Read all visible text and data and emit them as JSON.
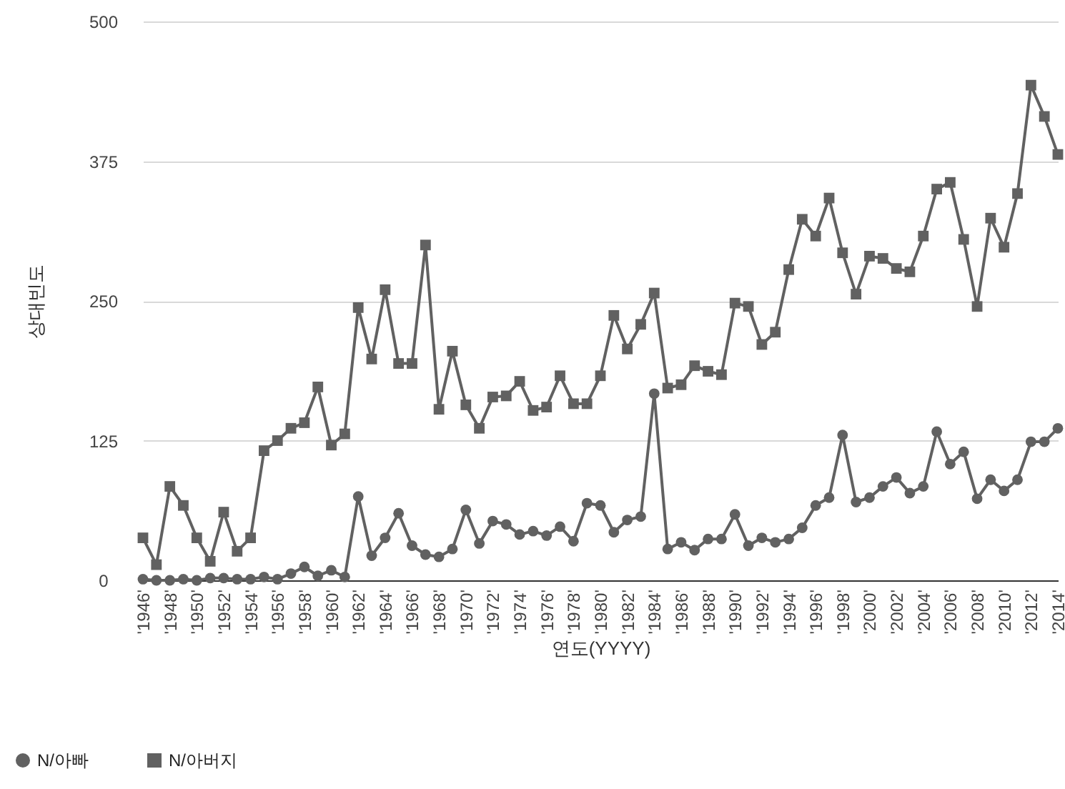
{
  "chart_data": {
    "type": "line",
    "xlabel": "연도(YYYY)",
    "ylabel": "상대빈도",
    "categories": [
      "'1946'",
      null,
      "'1948'",
      null,
      "'1950'",
      null,
      "'1952'",
      null,
      "'1954'",
      null,
      "'1956'",
      null,
      "'1958'",
      null,
      "'1960'",
      null,
      "'1962'",
      null,
      "'1964'",
      null,
      "'1966'",
      null,
      "'1968'",
      null,
      "'1970'",
      null,
      "'1972'",
      null,
      "'1974'",
      null,
      "'1976'",
      null,
      "'1978'",
      null,
      "'1980'",
      null,
      "'1982'",
      null,
      "'1984'",
      null,
      "'1986'",
      null,
      "'1988'",
      null,
      "'1990'",
      null,
      "'1992'",
      null,
      "'1994'",
      null,
      "'1996'",
      null,
      "'1998'",
      null,
      "'2000'",
      null,
      "'2002'",
      null,
      "'2004'",
      null,
      "'2006'",
      null,
      "'2008'",
      null,
      "'2010'",
      null,
      "'2012'",
      null,
      "'2014'"
    ],
    "series": [
      {
        "name": "N/아빠",
        "color": "#616161",
        "marker": "circle",
        "values": [
          1,
          0,
          0,
          1,
          0,
          2,
          2,
          1,
          1,
          3,
          1,
          6,
          12,
          4,
          9,
          3,
          75,
          22,
          38,
          60,
          31,
          23,
          21,
          28,
          63,
          33,
          53,
          50,
          41,
          44,
          40,
          48,
          35,
          69,
          67,
          43,
          54,
          57,
          167,
          28,
          34,
          27,
          37,
          37,
          59,
          31,
          38,
          34,
          37,
          47,
          67,
          74,
          130,
          70,
          74,
          84,
          92,
          78,
          84,
          133,
          104,
          115,
          73,
          90,
          80,
          90,
          124,
          124,
          136
        ]
      },
      {
        "name": "N/아버지",
        "color": "#616161",
        "marker": "square",
        "values": [
          38,
          14,
          84,
          67,
          38,
          17,
          61,
          26,
          38,
          116,
          125,
          136,
          141,
          173,
          121,
          131,
          244,
          198,
          260,
          194,
          194,
          300,
          153,
          205,
          157,
          136,
          164,
          165,
          178,
          152,
          155,
          183,
          158,
          158,
          183,
          237,
          207,
          229,
          257,
          172,
          175,
          192,
          187,
          184,
          248,
          245,
          211,
          222,
          278,
          323,
          308,
          342,
          293,
          256,
          290,
          288,
          279,
          276,
          308,
          350,
          356,
          305,
          245,
          324,
          298,
          346,
          443,
          415,
          381
        ]
      }
    ],
    "ylim": [
      0,
      500
    ],
    "yticks": [
      0,
      125,
      250,
      375,
      500
    ],
    "grid": "y",
    "legend": "bottom left"
  }
}
